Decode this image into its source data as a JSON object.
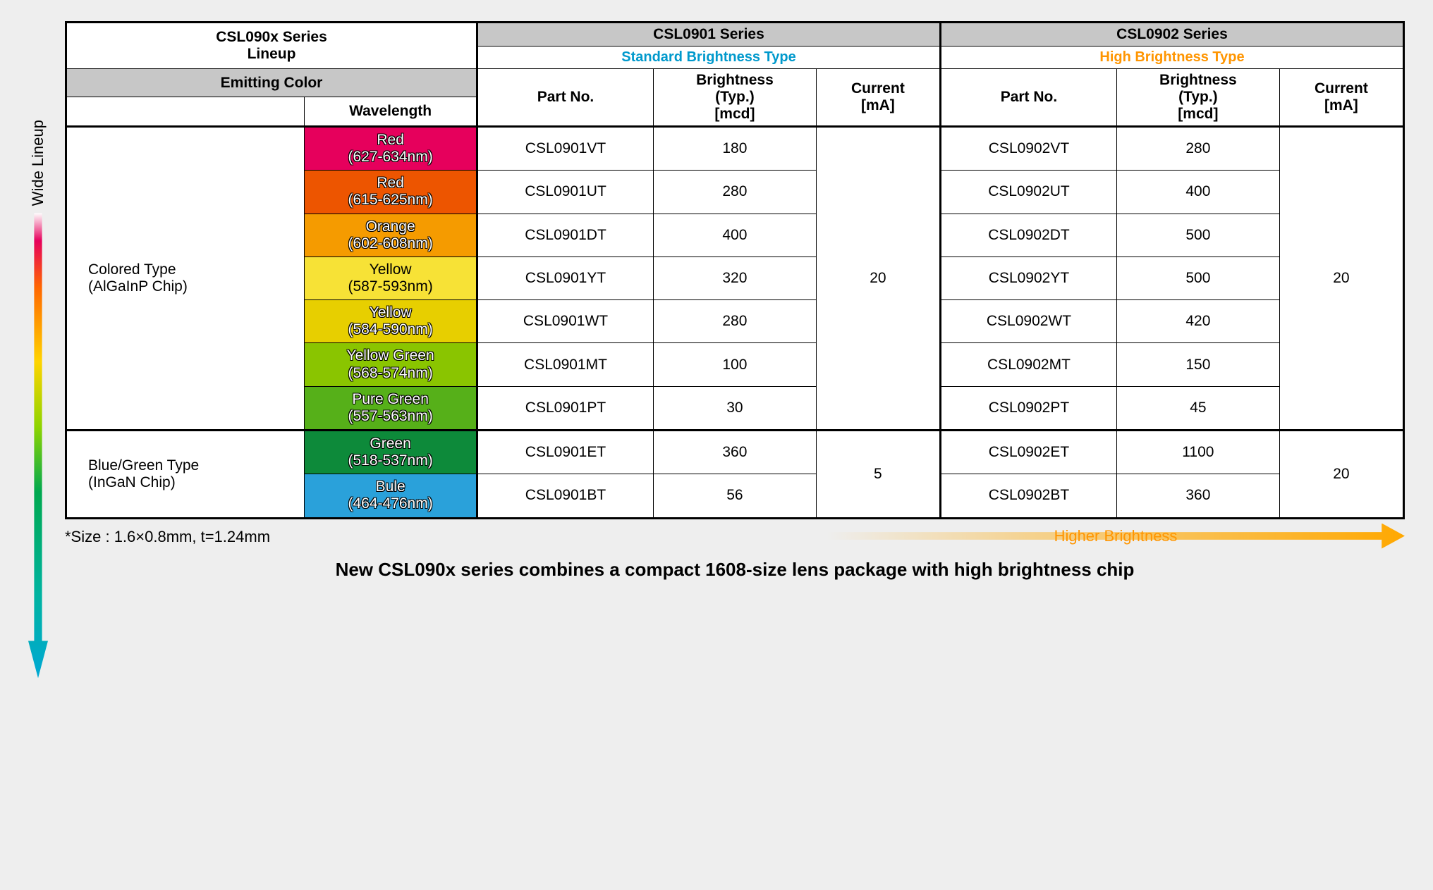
{
  "side_label": "Wide Lineup",
  "headers": {
    "main": "CSL090x  Series\nLineup",
    "s1": "CSL0901 Series",
    "s2": "CSL0902 Series",
    "s1_type": "Standard Brightness Type",
    "s2_type": "High Brightness Type",
    "s1_color": "#0099cc",
    "s2_color": "#ff9500",
    "emitting": "Emitting Color",
    "wavelength": "Wavelength",
    "partno": "Part No.",
    "brightness": "Brightness\n(Typ.)\n[mcd]",
    "current": "Current\n[mA]"
  },
  "groups": [
    {
      "label": "Colored Type\n(AlGaInP Chip)",
      "count": 7,
      "current1": "20",
      "current2": "20"
    },
    {
      "label": "Blue/Green Type\n(InGaN Chip)",
      "count": 2,
      "current1": "5",
      "current2": "20"
    }
  ],
  "rows": [
    {
      "name": "Red",
      "wl": "(627-634nm)",
      "bg": "#e6005c",
      "txt": "light",
      "p1": "CSL0901VT",
      "b1": "180",
      "p2": "CSL0902VT",
      "b2": "280"
    },
    {
      "name": "Red",
      "wl": "(615-625nm)",
      "bg": "#ed5500",
      "txt": "light",
      "p1": "CSL0901UT",
      "b1": "280",
      "p2": "CSL0902UT",
      "b2": "400"
    },
    {
      "name": "Orange",
      "wl": "(602-608nm)",
      "bg": "#f59b00",
      "txt": "light",
      "p1": "CSL0901DT",
      "b1": "400",
      "p2": "CSL0902DT",
      "b2": "500"
    },
    {
      "name": "Yellow",
      "wl": "(587-593nm)",
      "bg": "#f7e236",
      "txt": "dark",
      "p1": "CSL0901YT",
      "b1": "320",
      "p2": "CSL0902YT",
      "b2": "500"
    },
    {
      "name": "Yellow",
      "wl": "(584-590nm)",
      "bg": "#e7cf00",
      "txt": "light",
      "p1": "CSL0901WT",
      "b1": "280",
      "p2": "CSL0902WT",
      "b2": "420"
    },
    {
      "name": "Yellow Green",
      "wl": "(568-574nm)",
      "bg": "#8ac500",
      "txt": "light",
      "p1": "CSL0901MT",
      "b1": "100",
      "p2": "CSL0902MT",
      "b2": "150"
    },
    {
      "name": "Pure Green",
      "wl": "(557-563nm)",
      "bg": "#56b019",
      "txt": "light",
      "p1": "CSL0901PT",
      "b1": "30",
      "p2": "CSL0902PT",
      "b2": "45"
    },
    {
      "name": "Green",
      "wl": "(518-537nm)",
      "bg": "#0d8a3a",
      "txt": "light",
      "p1": "CSL0901ET",
      "b1": "360",
      "p2": "CSL0902ET",
      "b2": "1100"
    },
    {
      "name": "Bule",
      "wl": "(464-476nm)",
      "bg": "#2aa1da",
      "txt": "light",
      "p1": "CSL0901BT",
      "b1": "56",
      "p2": "CSL0902BT",
      "b2": "360"
    }
  ],
  "note": "*Size : 1.6×0.8mm, t=1.24mm",
  "bottom_arrow": "Higher Brightness",
  "tagline": "New CSL090x series combines a compact 1608-size lens package with high brightness chip"
}
